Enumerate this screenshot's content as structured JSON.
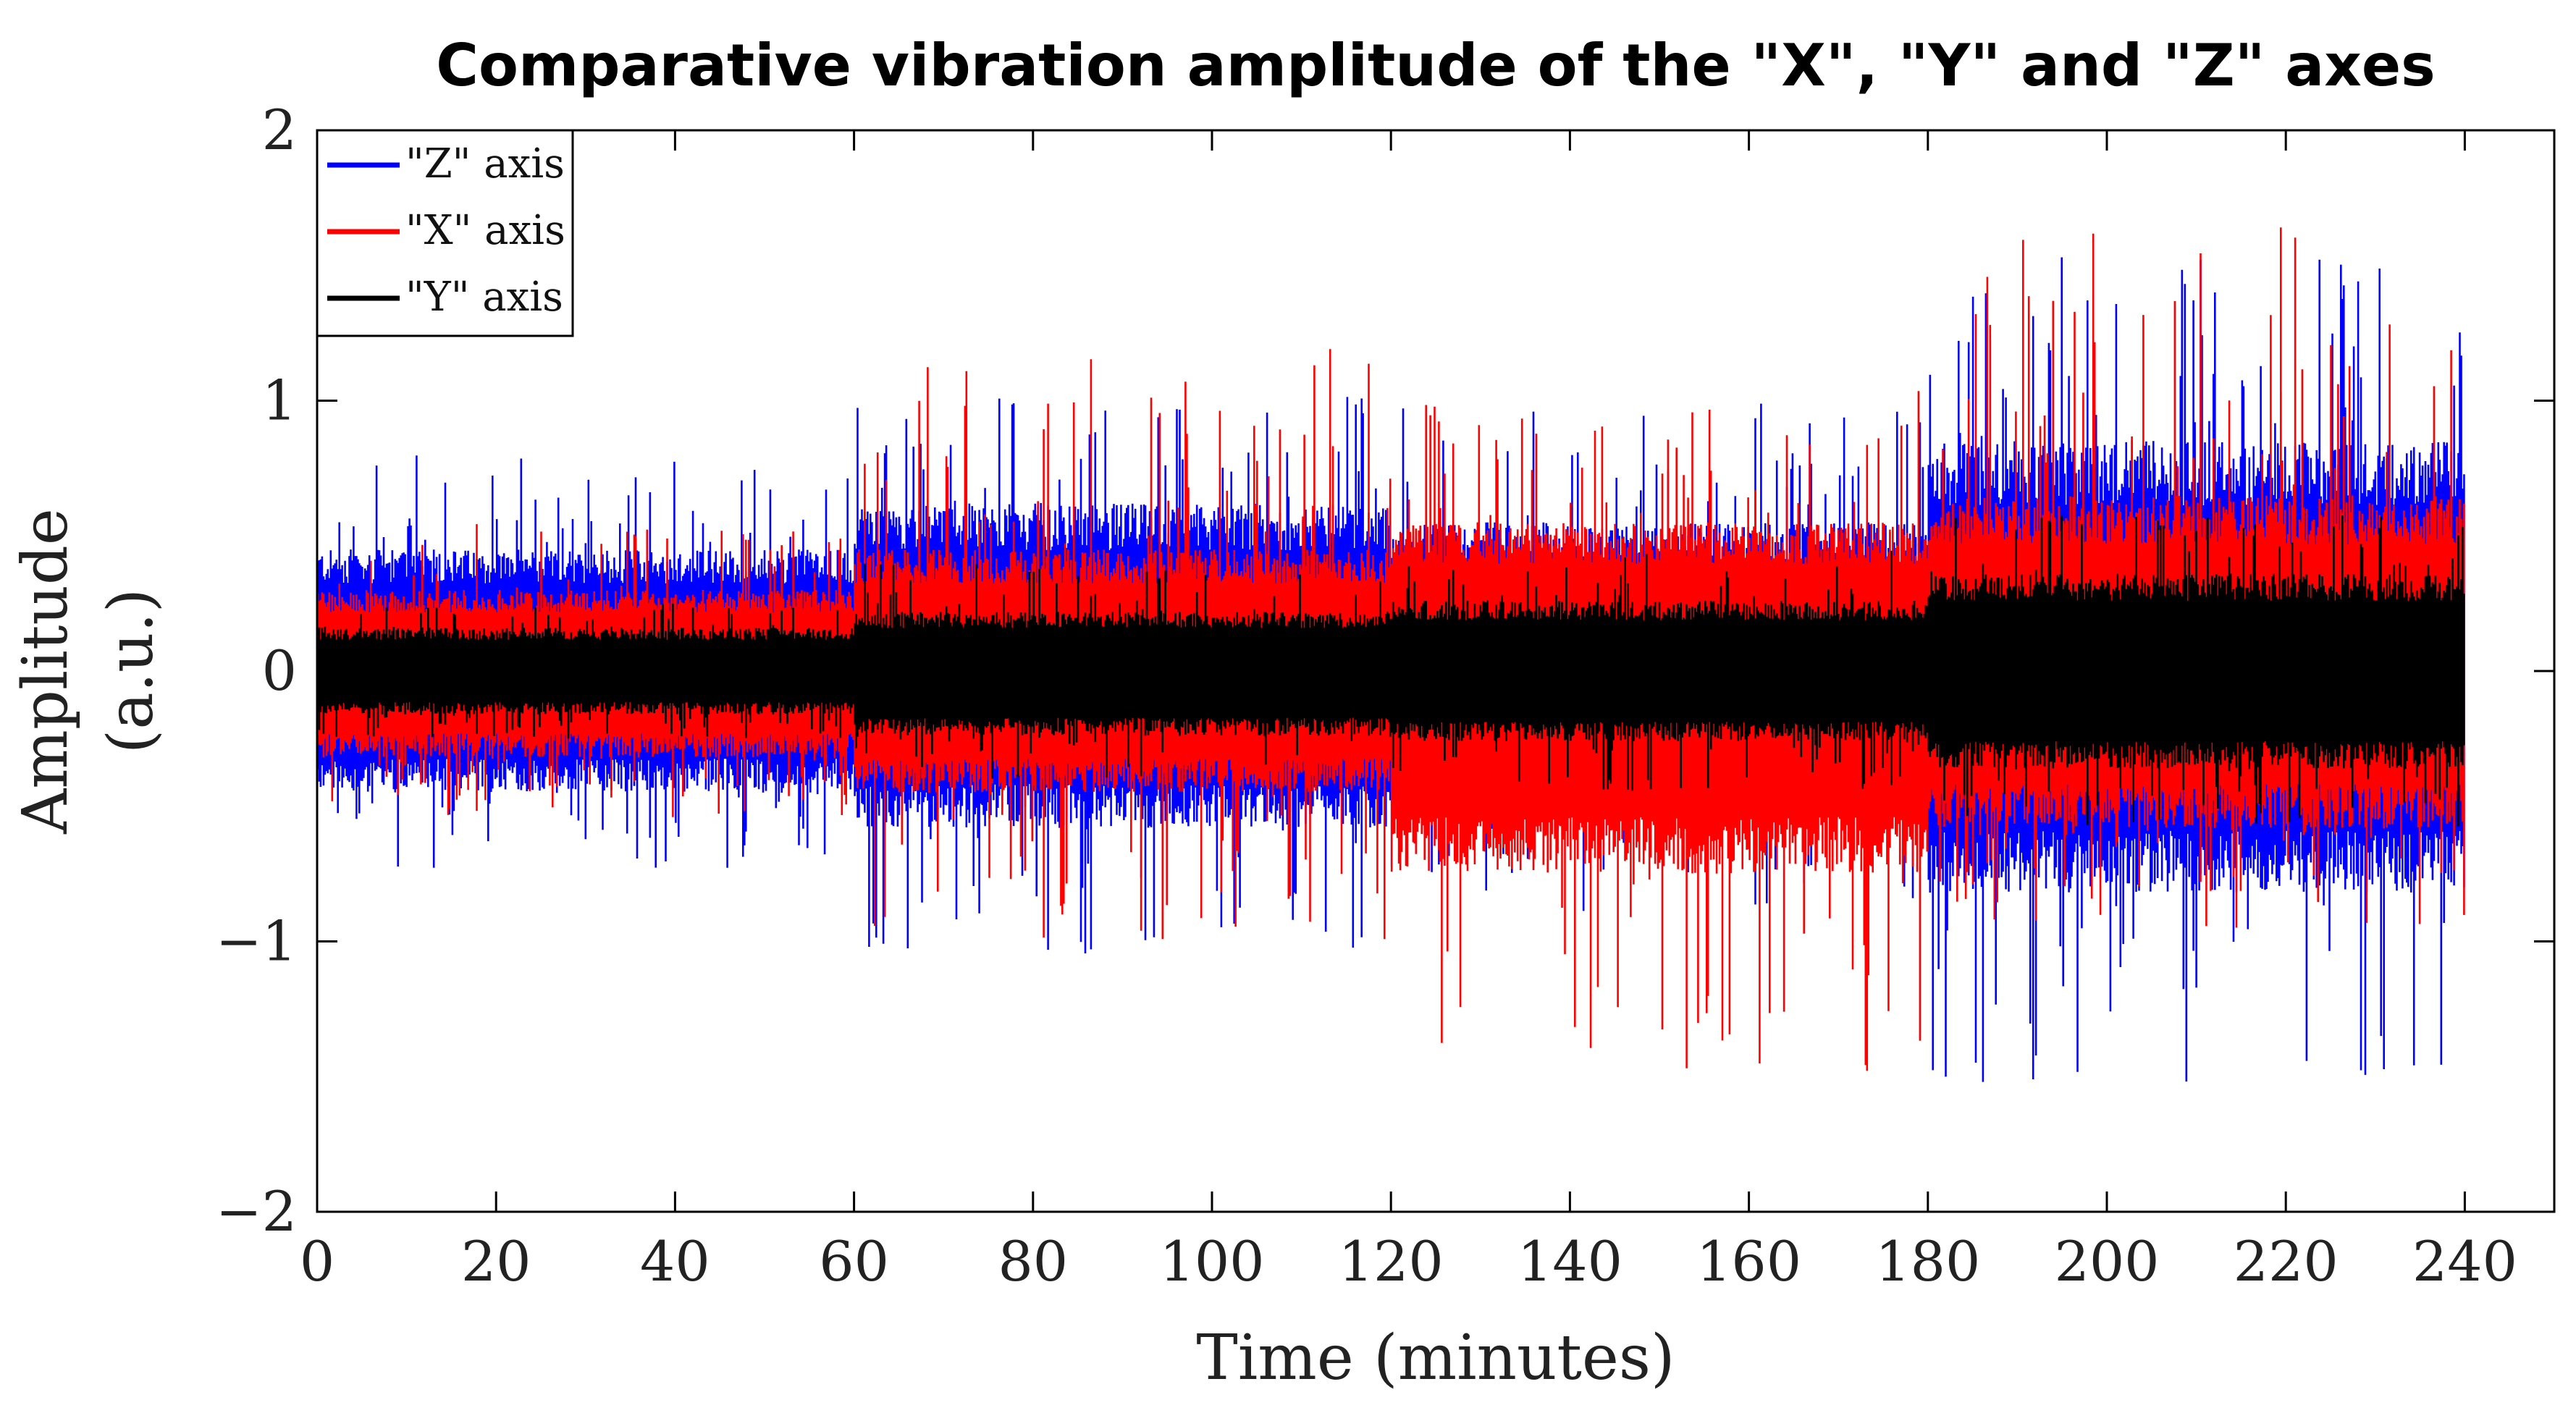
{
  "chart_data": {
    "type": "line",
    "title": "Comparative vibration amplitude of the \"X\", \"Y\" and \"Z\" axes",
    "xlabel": "Time (minutes)",
    "ylabel": [
      "Amplitude",
      "(a.u.)"
    ],
    "xlim": [
      0,
      240
    ],
    "ylim": [
      -2,
      2
    ],
    "xticks": [
      0,
      20,
      40,
      60,
      80,
      100,
      120,
      140,
      160,
      180,
      200,
      220,
      240
    ],
    "xtick_labels": [
      "0",
      "20",
      "40",
      "60",
      "80",
      "100",
      "120",
      "140",
      "160",
      "180",
      "200",
      "220",
      "240"
    ],
    "yticks": [
      -2,
      -1,
      0,
      1,
      2
    ],
    "ytick_labels": [
      "−2",
      "−1",
      "0",
      "1",
      "2"
    ],
    "grid": false,
    "legend_position": "top-left",
    "series": [
      {
        "name": "\"Z\" axis",
        "color": "#0000ff",
        "segments": [
          {
            "start": 0,
            "end": 60,
            "typical_max": 0.45,
            "typical_min": -0.45,
            "peak_max": 0.8,
            "peak_min": -0.75
          },
          {
            "start": 60,
            "end": 120,
            "typical_max": 0.62,
            "typical_min": -0.58,
            "peak_max": 1.05,
            "peak_min": -1.05
          },
          {
            "start": 120,
            "end": 180,
            "typical_max": 0.55,
            "typical_min": -0.45,
            "peak_max": 1.0,
            "peak_min": -0.9
          },
          {
            "start": 180,
            "end": 240,
            "typical_max": 0.85,
            "typical_min": -0.82,
            "peak_max": 1.55,
            "peak_min": -1.52
          }
        ]
      },
      {
        "name": "\"X\" axis",
        "color": "#ff0000",
        "segments": [
          {
            "start": 0,
            "end": 60,
            "typical_max": 0.3,
            "typical_min": -0.32,
            "peak_max": 0.55,
            "peak_min": -0.55
          },
          {
            "start": 60,
            "end": 120,
            "typical_max": 0.45,
            "typical_min": -0.45,
            "peak_max": 1.2,
            "peak_min": -1.0
          },
          {
            "start": 120,
            "end": 180,
            "typical_max": 0.55,
            "typical_min": -0.75,
            "peak_max": 1.05,
            "peak_min": -1.5
          },
          {
            "start": 180,
            "end": 240,
            "typical_max": 0.65,
            "typical_min": -0.58,
            "peak_max": 1.65,
            "peak_min": -0.95
          }
        ]
      },
      {
        "name": "\"Y\" axis",
        "color": "#000000",
        "segments": [
          {
            "start": 0,
            "end": 60,
            "typical_max": 0.16,
            "typical_min": -0.16,
            "peak_max": 0.25,
            "peak_min": -0.25
          },
          {
            "start": 60,
            "end": 120,
            "typical_max": 0.22,
            "typical_min": -0.24,
            "peak_max": 0.4,
            "peak_min": -0.4
          },
          {
            "start": 120,
            "end": 180,
            "typical_max": 0.26,
            "typical_min": -0.26,
            "peak_max": 0.45,
            "peak_min": -0.45
          },
          {
            "start": 180,
            "end": 240,
            "typical_max": 0.36,
            "typical_min": -0.36,
            "peak_max": 0.6,
            "peak_min": -0.58
          }
        ]
      }
    ]
  }
}
